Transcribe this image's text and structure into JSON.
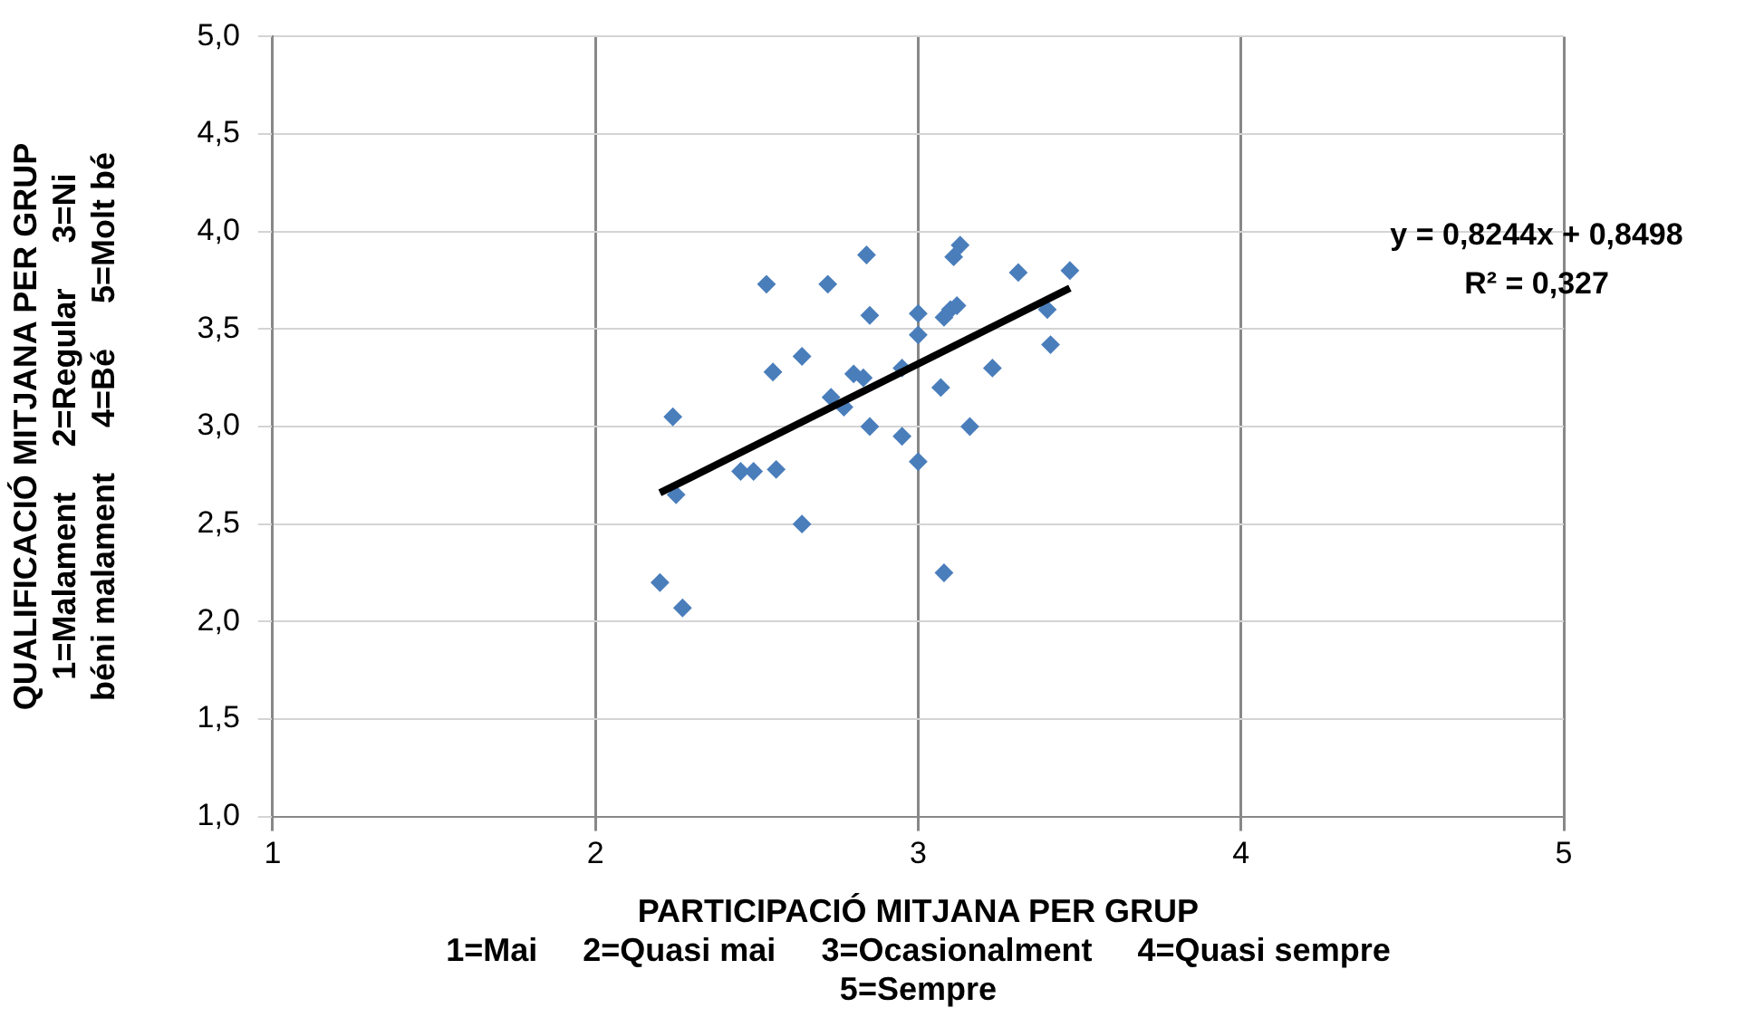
{
  "chart_data": {
    "type": "scatter",
    "xlabel": "PARTICIPACIÓ MITJANA PER GRUP\n1=Mai     2=Quasi mai     3=Ocasionalment     4=Quasi sempre\n5=Sempre",
    "ylabel": "QUALIFICACIÓ MITJANA PER GRUP\n1=Malament     2=Regular     3=Ni\nbéni malament     4=Bé     5=Molt bé",
    "xlim": [
      1,
      5
    ],
    "xticks": [
      1,
      2,
      3,
      4,
      5
    ],
    "ylim": [
      1,
      5
    ],
    "yticks": [
      {
        "value": 1,
        "label": "1,0"
      },
      {
        "value": 1.5,
        "label": "1,5"
      },
      {
        "value": 2,
        "label": "2,0"
      },
      {
        "value": 2.5,
        "label": "2,5"
      },
      {
        "value": 3,
        "label": "3,0"
      },
      {
        "value": 3.5,
        "label": "3,5"
      },
      {
        "value": 4,
        "label": "4,0"
      },
      {
        "value": 4.5,
        "label": "4,5"
      },
      {
        "value": 5,
        "label": "5,0"
      }
    ],
    "grid": true,
    "marker": "diamond",
    "annotations": [
      "y = 0,8244x + 0,8498\nR² = 0,327"
    ],
    "series": [
      {
        "color": "#4a7ebb",
        "x": [
          2.2,
          2.24,
          2.25,
          2.27,
          2.45,
          2.49,
          2.53,
          2.55,
          2.56,
          2.64,
          2.64,
          2.72,
          2.73,
          2.77,
          2.8,
          2.83,
          2.84,
          2.85,
          2.85,
          2.95,
          2.95,
          3.0,
          3.0,
          3.0,
          3.07,
          3.08,
          3.08,
          3.1,
          3.11,
          3.12,
          3.13,
          3.16,
          3.23,
          3.31,
          3.4,
          3.41,
          3.47
        ],
        "values": [
          2.2,
          3.05,
          2.65,
          2.07,
          2.77,
          2.77,
          3.73,
          3.28,
          2.78,
          3.36,
          2.5,
          3.73,
          3.15,
          3.1,
          3.27,
          3.25,
          3.88,
          3.0,
          3.57,
          2.95,
          3.3,
          3.58,
          3.47,
          2.82,
          3.2,
          3.56,
          2.25,
          3.6,
          3.87,
          3.62,
          3.93,
          3.0,
          3.3,
          3.79,
          3.6,
          3.42,
          3.8
        ]
      },
      {
        "type": "line",
        "color": "#000000",
        "marker": "none",
        "x": [
          2.2,
          3.47
        ],
        "values": [
          2.66,
          3.71
        ]
      }
    ]
  }
}
